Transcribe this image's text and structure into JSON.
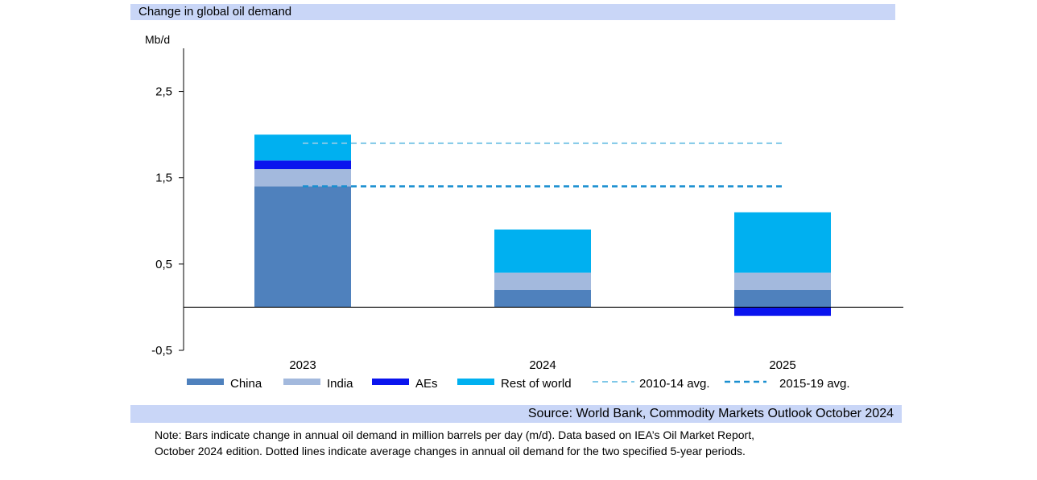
{
  "chart_data": {
    "type": "bar",
    "stacked": true,
    "title": "Change in global oil demand",
    "ylabel": "Mb/d",
    "ylim": [
      -0.5,
      3.0
    ],
    "yticks": [
      "2,5",
      "1,5",
      "0,5",
      "-0,5"
    ],
    "ytick_values": [
      2.5,
      1.5,
      0.5,
      -0.5
    ],
    "categories": [
      "2023",
      "2024",
      "2025"
    ],
    "series": [
      {
        "name": "China",
        "color": "#4f81bd",
        "values": [
          1.4,
          0.2,
          0.2
        ]
      },
      {
        "name": "India",
        "color": "#a3b9dd",
        "values": [
          0.2,
          0.2,
          0.2
        ]
      },
      {
        "name": "AEs",
        "color": "#0a14ee",
        "values": [
          0.1,
          0.0,
          -0.1
        ]
      },
      {
        "name": "Rest of world",
        "color": "#00b0f0",
        "values": [
          0.3,
          0.5,
          0.7
        ]
      }
    ],
    "reference_lines": [
      {
        "name": "2010-14 avg.",
        "value": 1.9,
        "color": "#7fc8e8",
        "style": "dashed"
      },
      {
        "name": "2015-19 avg.",
        "value": 1.4,
        "color": "#1a8fd0",
        "style": "dashed"
      }
    ],
    "legend_position": "bottom"
  },
  "source": "Source: World Bank, Commodity Markets Outlook October 2024",
  "note_lines": [
    "Note: Bars indicate change in annual oil demand in million barrels per day (m/d). Data based on IEA’s Oil Market Report,",
    "October 2024 edition. Dotted lines indicate average changes in annual oil demand for the two specified 5-year periods."
  ]
}
